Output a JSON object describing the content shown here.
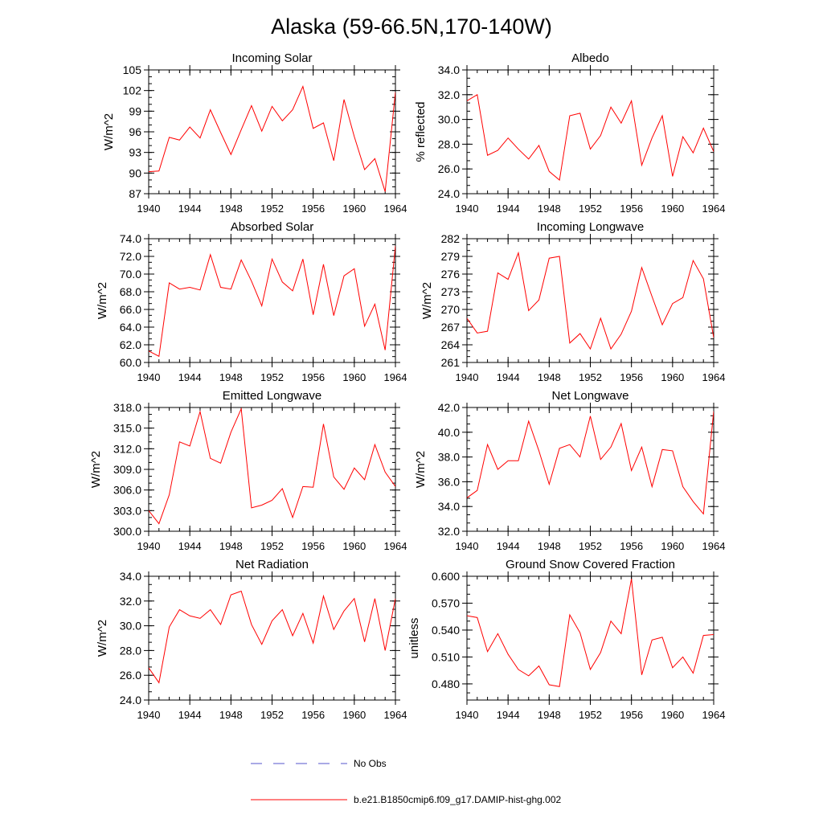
{
  "title": "Alaska (59-66.5N,170-140W)",
  "legend": {
    "obs_label": "No Obs",
    "obs_color": "#5555cc",
    "model_label": "b.e21.B1850cmip6.f09_g17.DAMIP-hist-ghg.002",
    "model_color": "#ff0000"
  },
  "chart_data": [
    {
      "type": "line",
      "title": "Incoming Solar",
      "xlabel": "",
      "ylabel": "W/m^2",
      "xlim": [
        1940,
        1964
      ],
      "ylim": [
        87,
        105
      ],
      "x_ticks": [
        "1940",
        "1944",
        "1948",
        "1952",
        "1956",
        "1960",
        "1964"
      ],
      "y_ticks": [
        "87",
        "90",
        "93",
        "96",
        "99",
        "102",
        "105"
      ],
      "x": [
        1940,
        1941,
        1942,
        1943,
        1944,
        1945,
        1946,
        1947,
        1948,
        1949,
        1950,
        1951,
        1952,
        1953,
        1954,
        1955,
        1956,
        1957,
        1958,
        1959,
        1960,
        1961,
        1962,
        1963,
        1964
      ],
      "series": [
        {
          "values": [
            90.2,
            90.3,
            95.2,
            94.8,
            96.7,
            95.1,
            99.2,
            95.9,
            92.7,
            96.3,
            99.8,
            96.1,
            99.7,
            97.6,
            99.2,
            102.6,
            96.5,
            97.3,
            91.8,
            100.7,
            95.3,
            90.5,
            92.1,
            87.3,
            101.8
          ]
        }
      ]
    },
    {
      "type": "line",
      "title": "Albedo",
      "xlabel": "",
      "ylabel": "% reflected",
      "xlim": [
        1940,
        1964
      ],
      "ylim": [
        24.0,
        34.0
      ],
      "x_ticks": [
        "1940",
        "1944",
        "1948",
        "1952",
        "1956",
        "1960",
        "1964"
      ],
      "y_ticks": [
        "24.0",
        "26.0",
        "28.0",
        "30.0",
        "32.0",
        "34.0"
      ],
      "x": [
        1940,
        1941,
        1942,
        1943,
        1944,
        1945,
        1946,
        1947,
        1948,
        1949,
        1950,
        1951,
        1952,
        1953,
        1954,
        1955,
        1956,
        1957,
        1958,
        1959,
        1960,
        1961,
        1962,
        1963,
        1964
      ],
      "series": [
        {
          "values": [
            31.5,
            32.0,
            27.1,
            27.5,
            28.5,
            27.6,
            26.8,
            27.9,
            25.8,
            25.1,
            30.3,
            30.5,
            27.6,
            28.7,
            31.0,
            29.7,
            31.5,
            26.3,
            28.5,
            30.3,
            25.4,
            28.6,
            27.3,
            29.3,
            27.4
          ]
        }
      ]
    },
    {
      "type": "line",
      "title": "Absorbed Solar",
      "xlabel": "",
      "ylabel": "W/m^2",
      "xlim": [
        1940,
        1964
      ],
      "ylim": [
        60.0,
        74.0
      ],
      "x_ticks": [
        "1940",
        "1944",
        "1948",
        "1952",
        "1956",
        "1960",
        "1964"
      ],
      "y_ticks": [
        "60.0",
        "62.0",
        "64.0",
        "66.0",
        "68.0",
        "70.0",
        "72.0",
        "74.0"
      ],
      "x": [
        1940,
        1941,
        1942,
        1943,
        1944,
        1945,
        1946,
        1947,
        1948,
        1949,
        1950,
        1951,
        1952,
        1953,
        1954,
        1955,
        1956,
        1957,
        1958,
        1959,
        1960,
        1961,
        1962,
        1963,
        1964
      ],
      "series": [
        {
          "values": [
            61.3,
            60.7,
            69.0,
            68.3,
            68.5,
            68.2,
            72.2,
            68.5,
            68.3,
            71.6,
            69.2,
            66.4,
            71.7,
            69.1,
            68.1,
            71.7,
            65.4,
            71.1,
            65.3,
            69.8,
            70.6,
            64.1,
            66.6,
            61.4,
            73.2
          ]
        }
      ]
    },
    {
      "type": "line",
      "title": "Incoming Longwave",
      "xlabel": "",
      "ylabel": "W/m^2",
      "xlim": [
        1940,
        1964
      ],
      "ylim": [
        261,
        282
      ],
      "x_ticks": [
        "1940",
        "1944",
        "1948",
        "1952",
        "1956",
        "1960",
        "1964"
      ],
      "y_ticks": [
        "261",
        "264",
        "267",
        "270",
        "273",
        "276",
        "279",
        "282"
      ],
      "x": [
        1940,
        1941,
        1942,
        1943,
        1944,
        1945,
        1946,
        1947,
        1948,
        1949,
        1950,
        1951,
        1952,
        1953,
        1954,
        1955,
        1956,
        1957,
        1958,
        1959,
        1960,
        1961,
        1962,
        1963,
        1964
      ],
      "series": [
        {
          "values": [
            268.5,
            266.0,
            266.3,
            276.2,
            275.1,
            279.6,
            269.8,
            271.6,
            278.7,
            279.0,
            264.3,
            265.9,
            263.3,
            268.5,
            263.3,
            265.8,
            269.7,
            277.1,
            272.2,
            267.4,
            271.0,
            272.0,
            278.3,
            275.2,
            265.2
          ]
        }
      ]
    },
    {
      "type": "line",
      "title": "Emitted Longwave",
      "xlabel": "",
      "ylabel": "W/m^2",
      "xlim": [
        1940,
        1964
      ],
      "ylim": [
        300.0,
        318.0
      ],
      "x_ticks": [
        "1940",
        "1944",
        "1948",
        "1952",
        "1956",
        "1960",
        "1964"
      ],
      "y_ticks": [
        "300.0",
        "303.0",
        "306.0",
        "309.0",
        "312.0",
        "315.0",
        "318.0"
      ],
      "x": [
        1940,
        1941,
        1942,
        1943,
        1944,
        1945,
        1946,
        1947,
        1948,
        1949,
        1950,
        1951,
        1952,
        1953,
        1954,
        1955,
        1956,
        1957,
        1958,
        1959,
        1960,
        1961,
        1962,
        1963,
        1964
      ],
      "series": [
        {
          "values": [
            303.0,
            301.1,
            305.3,
            313.0,
            312.4,
            317.4,
            310.6,
            309.9,
            314.4,
            317.8,
            303.4,
            303.8,
            304.5,
            306.2,
            302.0,
            306.5,
            306.4,
            315.6,
            307.9,
            306.1,
            309.2,
            307.5,
            312.6,
            308.6,
            306.5
          ]
        }
      ]
    },
    {
      "type": "line",
      "title": "Net Longwave",
      "xlabel": "",
      "ylabel": "W/m^2",
      "xlim": [
        1940,
        1964
      ],
      "ylim": [
        32.0,
        42.0
      ],
      "x_ticks": [
        "1940",
        "1944",
        "1948",
        "1952",
        "1956",
        "1960",
        "1964"
      ],
      "y_ticks": [
        "32.0",
        "34.0",
        "36.0",
        "38.0",
        "40.0",
        "42.0"
      ],
      "x": [
        1940,
        1941,
        1942,
        1943,
        1944,
        1945,
        1946,
        1947,
        1948,
        1949,
        1950,
        1951,
        1952,
        1953,
        1954,
        1955,
        1956,
        1957,
        1958,
        1959,
        1960,
        1961,
        1962,
        1963,
        1964
      ],
      "series": [
        {
          "values": [
            34.7,
            35.3,
            39.0,
            37.0,
            37.7,
            37.7,
            40.9,
            38.5,
            35.8,
            38.7,
            39.0,
            38.0,
            41.3,
            37.8,
            38.8,
            40.7,
            36.9,
            38.8,
            35.6,
            38.6,
            38.5,
            35.6,
            34.4,
            33.4,
            41.7
          ]
        }
      ]
    },
    {
      "type": "line",
      "title": "Net Radiation",
      "xlabel": "",
      "ylabel": "W/m^2",
      "xlim": [
        1940,
        1964
      ],
      "ylim": [
        24.0,
        34.0
      ],
      "x_ticks": [
        "1940",
        "1944",
        "1948",
        "1952",
        "1956",
        "1960",
        "1964"
      ],
      "y_ticks": [
        "24.0",
        "26.0",
        "28.0",
        "30.0",
        "32.0",
        "34.0"
      ],
      "x": [
        1940,
        1941,
        1942,
        1943,
        1944,
        1945,
        1946,
        1947,
        1948,
        1949,
        1950,
        1951,
        1952,
        1953,
        1954,
        1955,
        1956,
        1957,
        1958,
        1959,
        1960,
        1961,
        1962,
        1963,
        1964
      ],
      "series": [
        {
          "values": [
            26.6,
            25.4,
            29.9,
            31.3,
            30.8,
            30.6,
            31.3,
            30.1,
            32.5,
            32.8,
            30.1,
            28.5,
            30.4,
            31.3,
            29.2,
            31.0,
            28.6,
            32.4,
            29.7,
            31.2,
            32.2,
            28.7,
            32.2,
            28.0,
            32.2
          ]
        }
      ]
    },
    {
      "type": "line",
      "title": "Ground Snow Covered Fraction",
      "xlabel": "",
      "ylabel": "unitless",
      "xlim": [
        1940,
        1964
      ],
      "ylim": [
        0.462,
        0.6
      ],
      "x_ticks": [
        "1940",
        "1944",
        "1948",
        "1952",
        "1956",
        "1960",
        "1964"
      ],
      "y_ticks": [
        "0.480",
        "0.510",
        "0.540",
        "0.570",
        "0.600"
      ],
      "x": [
        1940,
        1941,
        1942,
        1943,
        1944,
        1945,
        1946,
        1947,
        1948,
        1949,
        1950,
        1951,
        1952,
        1953,
        1954,
        1955,
        1956,
        1957,
        1958,
        1959,
        1960,
        1961,
        1962,
        1963,
        1964
      ],
      "series": [
        {
          "values": [
            0.556,
            0.554,
            0.516,
            0.536,
            0.513,
            0.496,
            0.489,
            0.5,
            0.479,
            0.477,
            0.557,
            0.537,
            0.496,
            0.515,
            0.55,
            0.536,
            0.597,
            0.49,
            0.529,
            0.532,
            0.498,
            0.51,
            0.492,
            0.534,
            0.535
          ]
        }
      ]
    }
  ]
}
